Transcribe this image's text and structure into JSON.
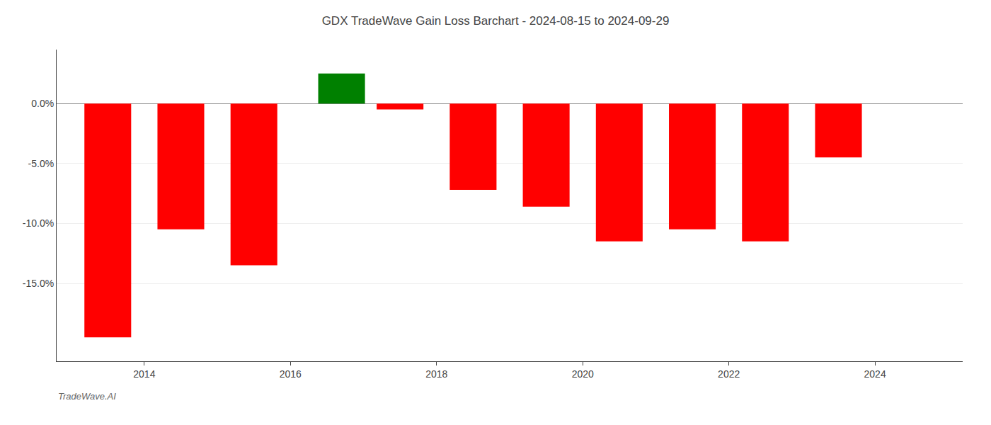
{
  "chart_data": {
    "type": "bar",
    "title": "GDX TradeWave Gain Loss Barchart - 2024-08-15 to 2024-09-29",
    "x": [
      2013.5,
      2014.5,
      2015.5,
      2016.7,
      2017.5,
      2018.5,
      2019.5,
      2020.5,
      2021.5,
      2022.5,
      2023.5
    ],
    "values": [
      -0.195,
      -0.105,
      -0.135,
      0.025,
      -0.005,
      -0.072,
      -0.086,
      -0.115,
      -0.105,
      -0.115,
      -0.045
    ],
    "colors": [
      "red",
      "red",
      "red",
      "green",
      "red",
      "red",
      "red",
      "red",
      "red",
      "red",
      "red"
    ],
    "xlim": [
      2012.8,
      2025.2
    ],
    "xticks": [
      2014,
      2016,
      2018,
      2020,
      2022,
      2024
    ],
    "ylim": [
      -0.215,
      0.045
    ],
    "yticks": [
      {
        "value": 0.0,
        "label": "0.0%"
      },
      {
        "value": -0.05,
        "label": "-5.0%"
      },
      {
        "value": -0.1,
        "label": "-10.0%"
      },
      {
        "value": -0.15,
        "label": "-15.0%"
      }
    ],
    "grid": true,
    "annotations": [
      "TradeWave.AI"
    ]
  }
}
